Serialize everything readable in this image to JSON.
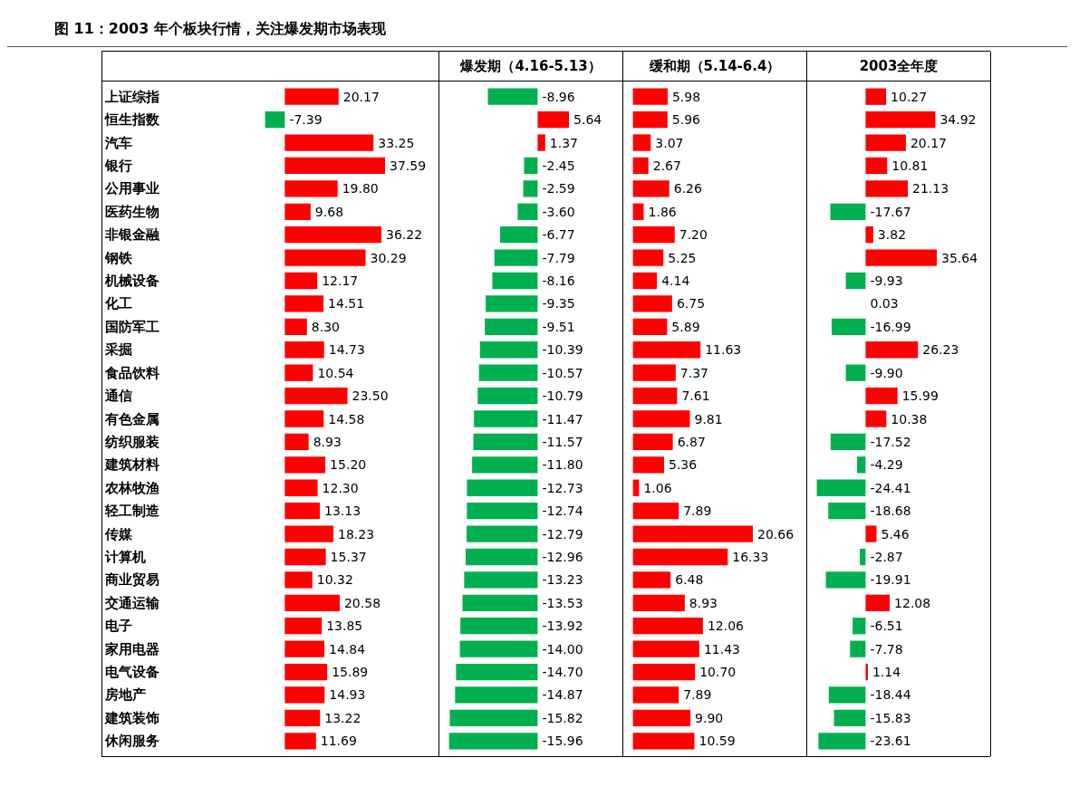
{
  "chart_data": [
    {
      "type": "bar",
      "orientation": "horizontal",
      "title": "图 11：2003 年个板块行情，关注爆发期市场表现",
      "tick_labels": "y",
      "categories": [
        "上证综指",
        "恒生指数",
        "汽车",
        "银行",
        "公用事业",
        "医药生物",
        "非银金融",
        "钢铁",
        "机械设备",
        "化工",
        "国防军工",
        "采掘",
        "食品饮料",
        "通信",
        "有色金属",
        "纺织服装",
        "建筑材料",
        "农林牧渔",
        "轻工制造",
        "传媒",
        "计算机",
        "商业贸易",
        "交通运输",
        "电子",
        "家用电器",
        "电气设备",
        "房地产",
        "建筑装饰",
        "休闲服务"
      ],
      "values": [
        20.17,
        -7.39,
        33.25,
        37.59,
        19.8,
        9.68,
        36.22,
        30.29,
        12.17,
        14.51,
        8.3,
        14.73,
        10.54,
        23.5,
        14.58,
        8.93,
        15.2,
        12.3,
        13.13,
        18.23,
        15.37,
        10.32,
        20.58,
        13.85,
        14.84,
        15.89,
        14.93,
        13.22,
        11.69
      ],
      "value_labels": [
        "20.17",
        "-7.39",
        "33.25",
        "37.59",
        "19.80",
        "9.68",
        "36.22",
        "30.29",
        "12.17",
        "14.51",
        "8.30",
        "14.73",
        "10.54",
        "23.50",
        "14.58",
        "8.93",
        "15.20",
        "12.30",
        "13.13",
        "18.23",
        "15.37",
        "10.32",
        "20.58",
        "13.85",
        "14.84",
        "15.89",
        "14.93",
        "13.22",
        "11.69"
      ],
      "colors": [
        "#ff0000",
        "#00b050",
        "#ff0000",
        "#ff0000",
        "#ff0000",
        "#ff0000",
        "#ff0000",
        "#ff0000",
        "#ff0000",
        "#ff0000",
        "#ff0000",
        "#ff0000",
        "#ff0000",
        "#ff0000",
        "#ff0000",
        "#ff0000",
        "#ff0000",
        "#ff0000",
        "#ff0000",
        "#ff0000",
        "#ff0000",
        "#ff0000",
        "#ff0000",
        "#ff0000",
        "#ff0000",
        "#ff0000",
        "#ff0000",
        "#ff0000",
        "#ff0000"
      ]
    },
    {
      "type": "bar",
      "orientation": "horizontal",
      "subtitle": "爆发期（4.16-5.13）",
      "tick_labels": false,
      "categories": [
        null,
        null,
        null,
        null,
        null,
        null,
        null,
        null,
        null,
        null,
        null,
        null,
        null,
        null,
        null,
        null,
        null,
        null,
        null,
        null,
        null,
        null,
        null,
        null,
        null,
        null,
        null,
        null,
        null
      ],
      "values": [
        -8.96,
        5.64,
        1.37,
        -2.45,
        -2.59,
        -3.6,
        -6.77,
        -7.79,
        -8.16,
        -9.35,
        -9.51,
        -10.39,
        -10.57,
        -10.79,
        -11.47,
        -11.57,
        -11.8,
        -12.73,
        -12.74,
        -12.79,
        -12.96,
        -13.23,
        -13.53,
        -13.92,
        -14.0,
        -14.7,
        -14.87,
        -15.82,
        -15.96
      ],
      "value_labels": [
        "-8.96",
        "5.64",
        "1.37",
        "-2.45",
        "-2.59",
        "-3.60",
        "-6.77",
        "-7.79",
        "-8.16",
        "-9.35",
        "-9.51",
        "-10.39",
        "-10.57",
        "-10.79",
        "-11.47",
        "-11.57",
        "-11.80",
        "-12.73",
        "-12.74",
        "-12.79",
        "-12.96",
        "-13.23",
        "-13.53",
        "-13.92",
        "-14.00",
        "-14.70",
        "-14.87",
        "-15.82",
        "-15.96"
      ],
      "colors": [
        "#00b050",
        "#ff0000",
        "#ff0000",
        "#00b050",
        "#00b050",
        "#00b050",
        "#00b050",
        "#00b050",
        "#00b050",
        "#00b050",
        "#00b050",
        "#00b050",
        "#00b050",
        "#00b050",
        "#00b050",
        "#00b050",
        "#00b050",
        "#00b050",
        "#00b050",
        "#00b050",
        "#00b050",
        "#00b050",
        "#00b050",
        "#00b050",
        "#00b050",
        "#00b050",
        "#00b050",
        "#00b050",
        "#00b050"
      ]
    },
    {
      "type": "bar",
      "orientation": "horizontal",
      "subtitle": "缓和期（5.14-6.4）",
      "tick_labels": false,
      "categories": [
        null,
        null,
        null,
        null,
        null,
        null,
        null,
        null,
        null,
        null,
        null,
        null,
        null,
        null,
        null,
        null,
        null,
        null,
        null,
        null,
        null,
        null,
        null,
        null,
        null,
        null,
        null,
        null,
        null
      ],
      "values": [
        5.98,
        5.96,
        3.07,
        2.67,
        6.26,
        1.86,
        7.2,
        5.25,
        4.14,
        6.75,
        5.89,
        11.63,
        7.37,
        7.61,
        9.81,
        6.87,
        5.36,
        1.06,
        7.89,
        20.66,
        16.33,
        6.48,
        8.93,
        12.06,
        11.43,
        10.7,
        7.89,
        9.9,
        10.59
      ],
      "value_labels": [
        "5.98",
        "5.96",
        "3.07",
        "2.67",
        "6.26",
        "1.86",
        "7.20",
        "5.25",
        "4.14",
        "6.75",
        "5.89",
        "11.63",
        "7.37",
        "7.61",
        "9.81",
        "6.87",
        "5.36",
        "1.06",
        "7.89",
        "20.66",
        "16.33",
        "6.48",
        "8.93",
        "12.06",
        "11.43",
        "10.70",
        "7.89",
        "9.90",
        "10.59"
      ],
      "colors": [
        "#ff0000",
        "#ff0000",
        "#ff0000",
        "#ff0000",
        "#ff0000",
        "#ff0000",
        "#ff0000",
        "#ff0000",
        "#ff0000",
        "#ff0000",
        "#ff0000",
        "#ff0000",
        "#ff0000",
        "#ff0000",
        "#ff0000",
        "#ff0000",
        "#ff0000",
        "#ff0000",
        "#ff0000",
        "#ff0000",
        "#ff0000",
        "#ff0000",
        "#ff0000",
        "#ff0000",
        "#ff0000",
        "#ff0000",
        "#ff0000",
        "#ff0000",
        "#ff0000"
      ]
    },
    {
      "type": "bar",
      "orientation": "horizontal",
      "subtitle": "2003全年度",
      "tick_labels": false,
      "categories": [
        null,
        null,
        null,
        null,
        null,
        null,
        null,
        null,
        null,
        null,
        null,
        null,
        null,
        null,
        null,
        null,
        null,
        null,
        null,
        null,
        null,
        null,
        null,
        null,
        null,
        null,
        null,
        null,
        null
      ],
      "values": [
        10.27,
        34.92,
        20.17,
        10.81,
        21.13,
        -17.67,
        3.82,
        35.64,
        -9.93,
        0.03,
        -16.99,
        26.23,
        -9.9,
        15.99,
        10.38,
        -17.52,
        -4.29,
        -24.41,
        -18.68,
        5.46,
        -2.87,
        -19.91,
        12.08,
        -6.51,
        -7.78,
        1.14,
        -18.44,
        -15.83,
        -23.61
      ],
      "value_labels": [
        "10.27",
        "34.92",
        "20.17",
        "10.81",
        "21.13",
        "-17.67",
        "3.82",
        "35.64",
        "-9.93",
        "0.03",
        "-16.99",
        "26.23",
        "-9.90",
        "15.99",
        "10.38",
        "-17.52",
        "-4.29",
        "-24.41",
        "-18.68",
        "5.46",
        "-2.87",
        "-19.91",
        "12.08",
        "-6.51",
        "-7.78",
        "1.14",
        "-18.44",
        "-15.83",
        "-23.61"
      ],
      "colors": [
        "#ff0000",
        "#ff0000",
        "#ff0000",
        "#ff0000",
        "#ff0000",
        "#00b050",
        "#ff0000",
        "#ff0000",
        "#00b050",
        "#ff0000",
        "#00b050",
        "#ff0000",
        "#00b050",
        "#ff0000",
        "#ff0000",
        "#00b050",
        "#00b050",
        "#00b050",
        "#00b050",
        "#ff0000",
        "#00b050",
        "#00b050",
        "#ff0000",
        "#00b050",
        "#00b050",
        "#ff0000",
        "#00b050",
        "#00b050",
        "#00b050"
      ]
    }
  ]
}
